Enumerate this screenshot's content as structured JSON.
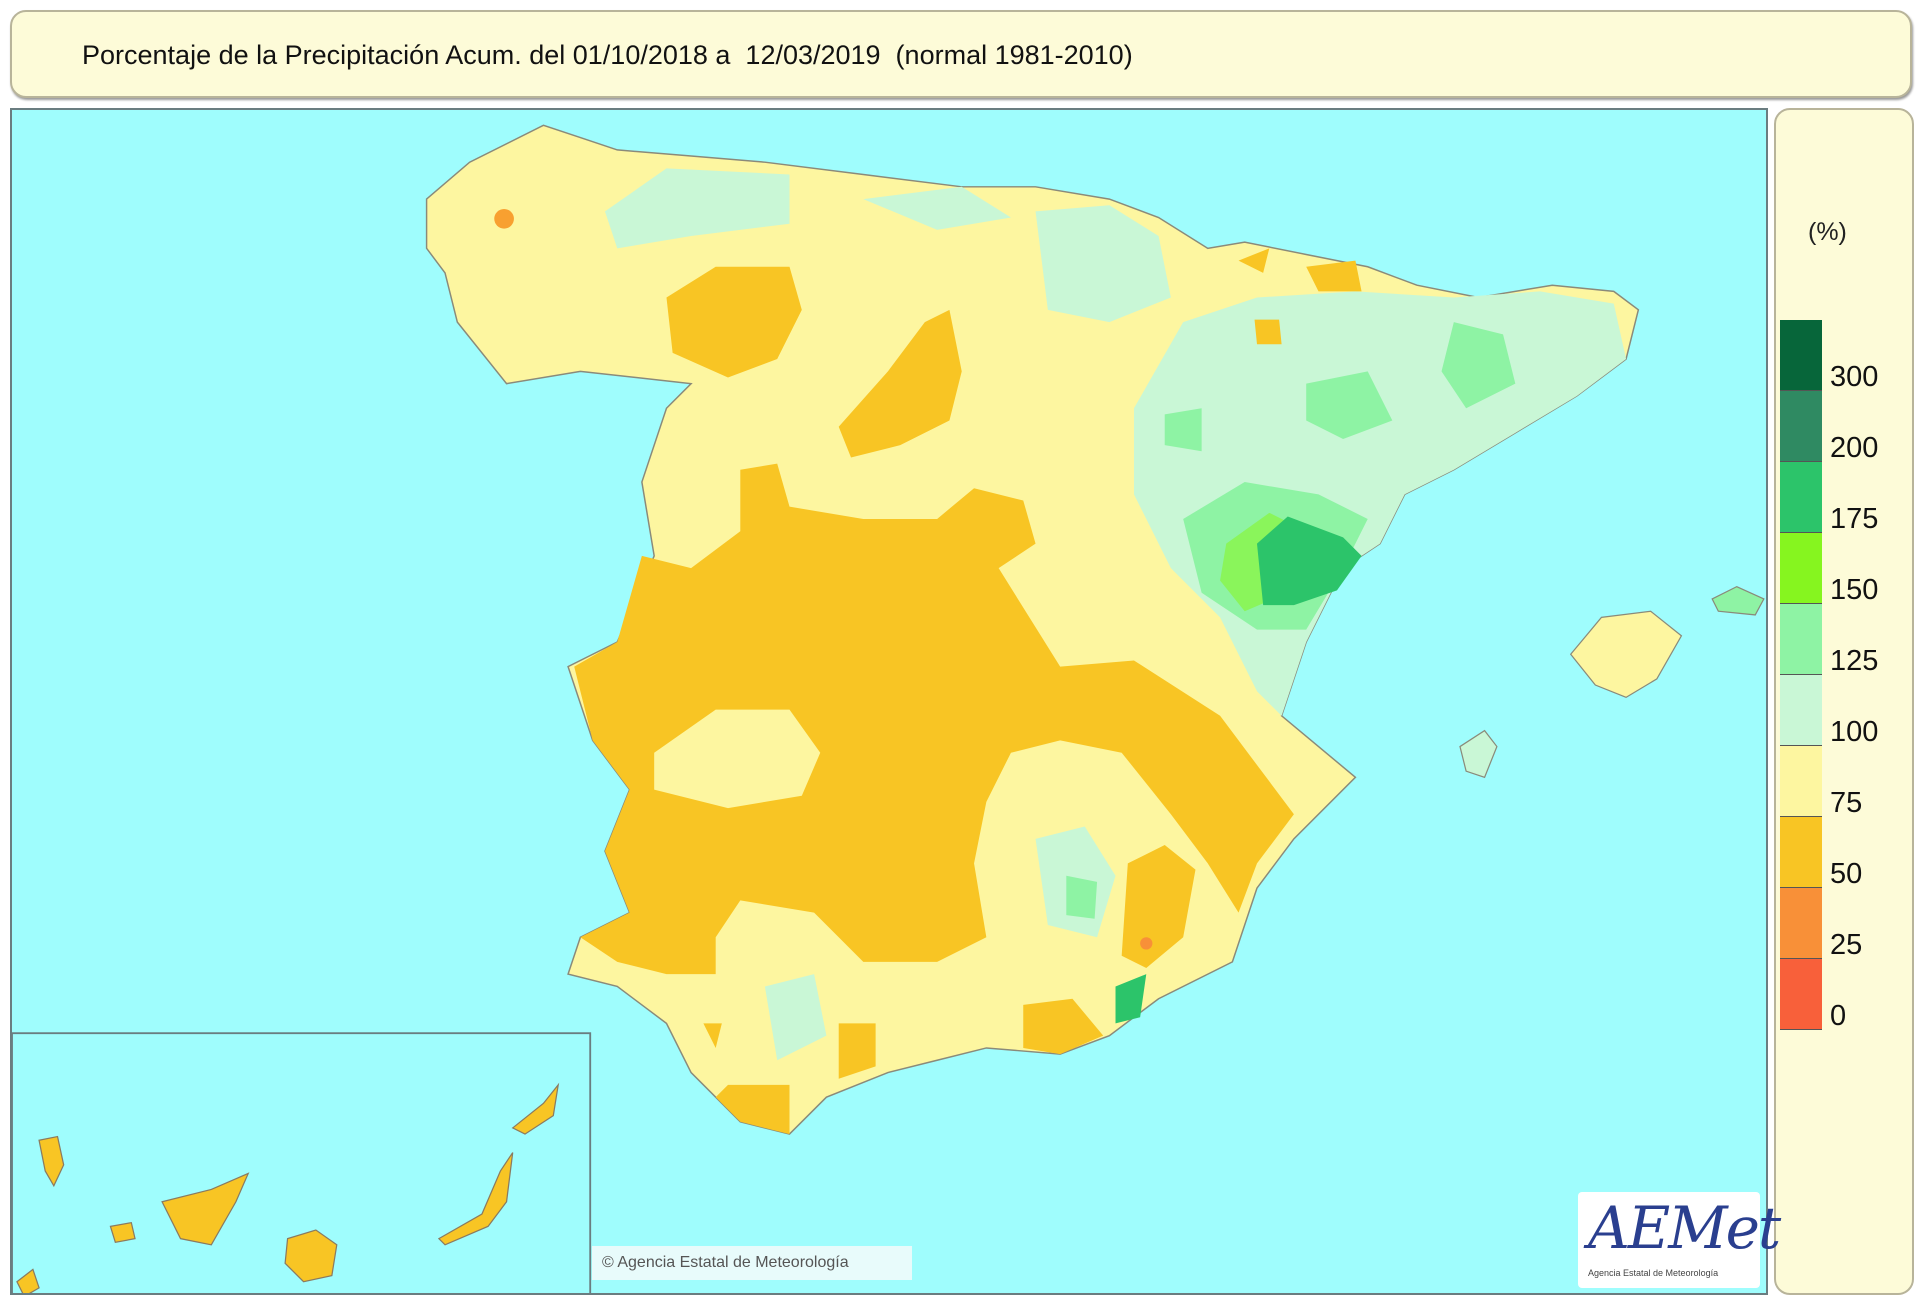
{
  "title": "Porcentaje de la Precipitación Acum. del 01/10/2018 a  12/03/2019  (normal 1981-2010)",
  "legend": {
    "unit": "(%)",
    "classes": [
      {
        "label": "300",
        "color": "#07663a"
      },
      {
        "label": "200",
        "color": "#2f8a62"
      },
      {
        "label": "175",
        "color": "#2cc46a"
      },
      {
        "label": "150",
        "color": "#86f51f"
      },
      {
        "label": "125",
        "color": "#8ef3a4"
      },
      {
        "label": "100",
        "color": "#c9f7d6"
      },
      {
        "label": "75",
        "color": "#fdf6a0"
      },
      {
        "label": "50",
        "color": "#f8c524"
      },
      {
        "label": "25",
        "color": "#f89038"
      },
      {
        "label": "0",
        "color": "#f8603a"
      }
    ]
  },
  "map": {
    "sea_color": "#9ffdfd"
  },
  "credit": "© Agencia Estatal de Meteorología",
  "logo": {
    "text": "AEMet",
    "subtitle": "Agencia Estatal de Meteorología"
  }
}
